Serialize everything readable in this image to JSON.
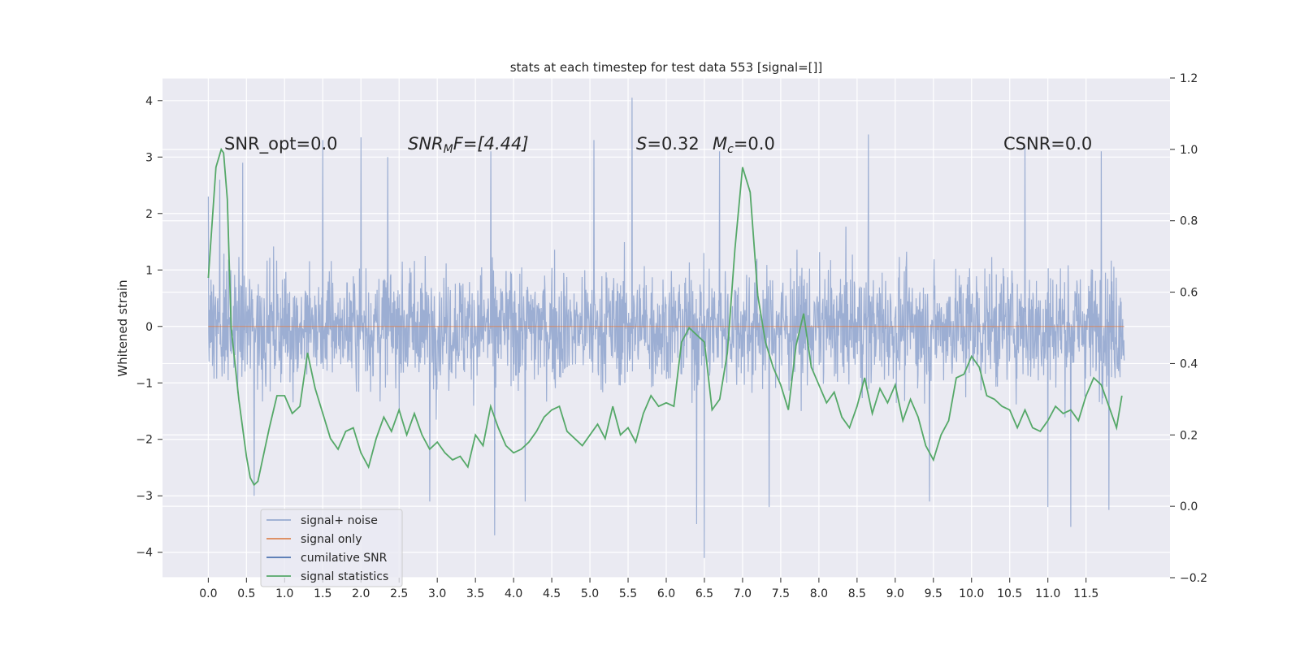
{
  "chart_data": {
    "type": "line",
    "title": "stats at each timestep for test data 553 [signal=[]]",
    "ylabel": "Whitened strain",
    "xlim": [
      -0.6,
      12.6
    ],
    "ylim": [
      -4.45,
      4.4
    ],
    "ylim_right": [
      -0.2,
      1.2
    ],
    "x_ticks": [
      0.0,
      0.5,
      1.0,
      1.5,
      2.0,
      2.5,
      3.0,
      3.5,
      4.0,
      4.5,
      5.0,
      5.5,
      6.0,
      6.5,
      7.0,
      7.5,
      8.0,
      8.5,
      9.0,
      9.5,
      10.0,
      10.5,
      11.0,
      11.5
    ],
    "x_tick_labels": [
      "0.0",
      "0.5",
      "1.0",
      "1.5",
      "2.0",
      "2.5",
      "3.0",
      "3.5",
      "4.0",
      "4.5",
      "5.0",
      "5.5",
      "6.0",
      "6.5",
      "7.0",
      "7.5",
      "8.0",
      "8.5",
      "9.0",
      "9.5",
      "10.0",
      "10.5",
      "11.0",
      "11.5"
    ],
    "y_ticks": [
      -4,
      -3,
      -2,
      -1,
      0,
      1,
      2,
      3,
      4
    ],
    "y_tick_labels": [
      "−4",
      "−3",
      "−2",
      "−1",
      "0",
      "1",
      "2",
      "3",
      "4"
    ],
    "y_ticks_right": [
      -0.2,
      0.0,
      0.2,
      0.4,
      0.6,
      0.8,
      1.0,
      1.2
    ],
    "y_tick_labels_right": [
      "−0.2",
      "0.0",
      "0.2",
      "0.4",
      "0.6",
      "0.8",
      "1.0",
      "1.2"
    ],
    "grid": true,
    "legend_position": "lower-left",
    "annotations": {
      "snr_opt": "SNR_opt=0.0",
      "snr_mf_main": "SNR",
      "snr_mf_sub": "M",
      "snr_mf_tail": "F=[4.44]",
      "s_main": "S",
      "s_tail": "=0.32",
      "mc_main": "M",
      "mc_sub": "c",
      "mc_tail": "=0.0",
      "csnr": "CSNR=0.0"
    },
    "series": [
      {
        "name": "signal+ noise",
        "color": "#98abd1",
        "axis": "left",
        "x_start": 0.0,
        "x_end": 12.0,
        "envelope_upper_typical": 1.9,
        "envelope_lower_typical": -1.9,
        "peaks": [
          {
            "x": 0.0,
            "y": 2.3
          },
          {
            "x": 0.15,
            "y": 2.6
          },
          {
            "x": 0.45,
            "y": 2.9
          },
          {
            "x": 1.5,
            "y": 3.3
          },
          {
            "x": 2.0,
            "y": 3.35
          },
          {
            "x": 2.35,
            "y": 3.0
          },
          {
            "x": 3.7,
            "y": 3.1
          },
          {
            "x": 5.05,
            "y": 3.3
          },
          {
            "x": 5.55,
            "y": 4.05
          },
          {
            "x": 6.7,
            "y": 3.1
          },
          {
            "x": 8.65,
            "y": 3.4
          },
          {
            "x": 10.7,
            "y": 3.2
          },
          {
            "x": 11.7,
            "y": 3.1
          }
        ],
        "troughs": [
          {
            "x": 0.6,
            "y": -3.0
          },
          {
            "x": 2.9,
            "y": -3.1
          },
          {
            "x": 3.75,
            "y": -3.7
          },
          {
            "x": 4.15,
            "y": -3.1
          },
          {
            "x": 6.4,
            "y": -3.5
          },
          {
            "x": 6.5,
            "y": -4.1
          },
          {
            "x": 7.35,
            "y": -3.2
          },
          {
            "x": 9.45,
            "y": -3.1
          },
          {
            "x": 11.0,
            "y": -3.2
          },
          {
            "x": 11.3,
            "y": -3.55
          },
          {
            "x": 11.8,
            "y": -3.25
          }
        ]
      },
      {
        "name": "signal only",
        "color": "#dd8452",
        "axis": "left",
        "x": [
          0.0,
          12.0
        ],
        "y": [
          0.0,
          0.0
        ]
      },
      {
        "name": "cumilative SNR",
        "color": "#4c72b0",
        "axis": "left",
        "x": [],
        "y": []
      },
      {
        "name": "signal statistics",
        "color": "#55a868",
        "axis": "right",
        "x": [
          0.0,
          0.1,
          0.17,
          0.2,
          0.25,
          0.3,
          0.4,
          0.5,
          0.55,
          0.6,
          0.65,
          0.7,
          0.8,
          0.9,
          1.0,
          1.1,
          1.2,
          1.3,
          1.4,
          1.5,
          1.6,
          1.7,
          1.8,
          1.9,
          2.0,
          2.1,
          2.2,
          2.3,
          2.4,
          2.5,
          2.6,
          2.7,
          2.8,
          2.9,
          3.0,
          3.1,
          3.2,
          3.3,
          3.4,
          3.5,
          3.6,
          3.7,
          3.8,
          3.9,
          4.0,
          4.1,
          4.2,
          4.3,
          4.4,
          4.5,
          4.6,
          4.7,
          4.8,
          4.9,
          5.0,
          5.1,
          5.2,
          5.3,
          5.4,
          5.5,
          5.6,
          5.7,
          5.8,
          5.9,
          6.0,
          6.1,
          6.2,
          6.3,
          6.4,
          6.5,
          6.6,
          6.7,
          6.8,
          6.9,
          7.0,
          7.1,
          7.2,
          7.3,
          7.4,
          7.5,
          7.6,
          7.7,
          7.8,
          7.9,
          8.0,
          8.1,
          8.2,
          8.3,
          8.4,
          8.5,
          8.6,
          8.7,
          8.8,
          8.9,
          9.0,
          9.1,
          9.2,
          9.3,
          9.4,
          9.5,
          9.6,
          9.7,
          9.8,
          9.9,
          10.0,
          10.1,
          10.2,
          10.3,
          10.4,
          10.5,
          10.6,
          10.7,
          10.8,
          10.9,
          11.0,
          11.1,
          11.2,
          11.3,
          11.4,
          11.5,
          11.6,
          11.7,
          11.8,
          11.9,
          11.97
        ],
        "y": [
          0.64,
          0.95,
          1.0,
          0.99,
          0.86,
          0.5,
          0.3,
          0.14,
          0.08,
          0.06,
          0.07,
          0.12,
          0.22,
          0.31,
          0.31,
          0.26,
          0.28,
          0.43,
          0.33,
          0.26,
          0.19,
          0.16,
          0.21,
          0.22,
          0.15,
          0.11,
          0.19,
          0.25,
          0.21,
          0.27,
          0.2,
          0.26,
          0.2,
          0.16,
          0.18,
          0.15,
          0.13,
          0.14,
          0.11,
          0.2,
          0.17,
          0.28,
          0.22,
          0.17,
          0.15,
          0.16,
          0.18,
          0.21,
          0.25,
          0.27,
          0.28,
          0.21,
          0.19,
          0.17,
          0.2,
          0.23,
          0.19,
          0.28,
          0.2,
          0.22,
          0.18,
          0.26,
          0.31,
          0.28,
          0.29,
          0.28,
          0.46,
          0.5,
          0.48,
          0.46,
          0.27,
          0.3,
          0.43,
          0.72,
          0.95,
          0.88,
          0.59,
          0.46,
          0.39,
          0.34,
          0.27,
          0.45,
          0.54,
          0.39,
          0.34,
          0.29,
          0.32,
          0.25,
          0.22,
          0.28,
          0.36,
          0.26,
          0.33,
          0.29,
          0.34,
          0.24,
          0.3,
          0.25,
          0.17,
          0.13,
          0.2,
          0.24,
          0.36,
          0.37,
          0.42,
          0.39,
          0.31,
          0.3,
          0.28,
          0.27,
          0.22,
          0.27,
          0.22,
          0.21,
          0.24,
          0.28,
          0.26,
          0.27,
          0.24,
          0.31,
          0.36,
          0.34,
          0.28,
          0.22,
          0.31
        ]
      }
    ]
  }
}
